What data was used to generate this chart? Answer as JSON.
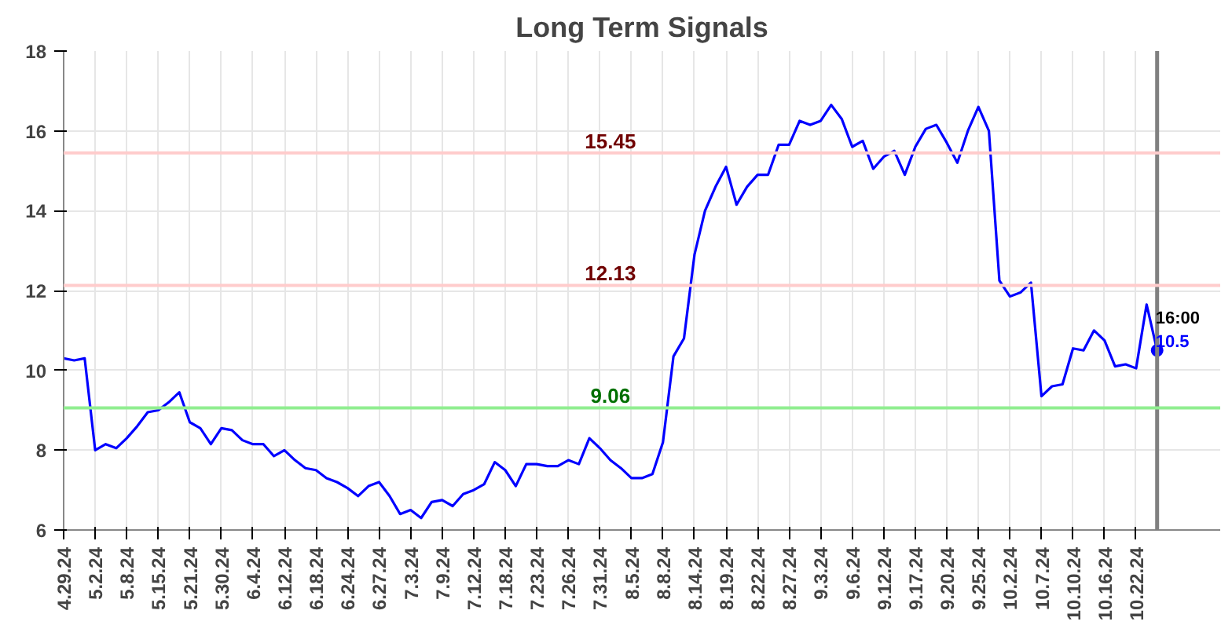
{
  "chart_data": {
    "type": "line",
    "title": "Long Term Signals",
    "categories": [
      "4.29.24",
      null,
      null,
      "5.2.24",
      null,
      null,
      "5.8.24",
      null,
      null,
      "5.15.24",
      null,
      null,
      "5.21.24",
      null,
      null,
      "5.30.24",
      null,
      null,
      "6.4.24",
      null,
      null,
      "6.12.24",
      null,
      null,
      "6.18.24",
      null,
      null,
      "6.24.24",
      null,
      null,
      "6.27.24",
      null,
      null,
      "7.3.24",
      null,
      null,
      "7.9.24",
      null,
      null,
      "7.12.24",
      null,
      null,
      "7.18.24",
      null,
      null,
      "7.23.24",
      null,
      null,
      "7.26.24",
      null,
      null,
      "7.31.24",
      null,
      null,
      "8.5.24",
      null,
      null,
      "8.8.24",
      null,
      null,
      "8.14.24",
      null,
      null,
      "8.19.24",
      null,
      null,
      "8.22.24",
      null,
      null,
      "8.27.24",
      null,
      null,
      "9.3.24",
      null,
      null,
      "9.6.24",
      null,
      null,
      "9.12.24",
      null,
      null,
      "9.17.24",
      null,
      null,
      "9.20.24",
      null,
      null,
      "9.25.24",
      null,
      null,
      "10.2.24",
      null,
      null,
      "10.7.24",
      null,
      null,
      "10.10.24",
      null,
      null,
      "10.16.24",
      null,
      null,
      "10.22.24",
      null,
      null
    ],
    "series": [
      {
        "color": "#0000ff",
        "values": [
          10.3,
          10.25,
          10.3,
          8.0,
          8.15,
          8.05,
          8.3,
          8.6,
          8.95,
          9.0,
          9.2,
          9.45,
          8.7,
          8.55,
          8.15,
          8.55,
          8.5,
          8.25,
          8.15,
          8.15,
          7.85,
          8.0,
          7.75,
          7.55,
          7.5,
          7.3,
          7.2,
          7.05,
          6.85,
          7.1,
          7.2,
          6.85,
          6.4,
          6.5,
          6.3,
          6.7,
          6.75,
          6.6,
          6.9,
          7.0,
          7.15,
          7.7,
          7.5,
          7.1,
          7.65,
          7.65,
          7.6,
          7.6,
          7.75,
          7.65,
          8.3,
          8.05,
          7.75,
          7.55,
          7.3,
          7.3,
          7.4,
          8.2,
          10.35,
          10.8,
          12.9,
          14.0,
          14.6,
          15.1,
          14.15,
          14.6,
          14.9,
          14.9,
          15.65,
          15.65,
          16.25,
          16.15,
          16.25,
          16.65,
          16.3,
          15.6,
          15.75,
          15.05,
          15.35,
          15.5,
          14.9,
          15.6,
          16.05,
          16.15,
          15.7,
          15.2,
          16.0,
          16.6,
          16.0,
          12.25,
          11.85,
          11.95,
          12.2,
          9.35,
          9.6,
          9.65,
          10.55,
          10.5,
          11.0,
          10.75,
          10.1,
          10.15,
          10.05,
          11.65,
          10.5
        ]
      },
      {
        "type": "scatter",
        "marker": "circle",
        "color": "#0000ff",
        "values": [
          null,
          null,
          null,
          null,
          null,
          null,
          null,
          null,
          null,
          null,
          null,
          null,
          null,
          null,
          null,
          null,
          null,
          null,
          null,
          null,
          null,
          null,
          null,
          null,
          null,
          null,
          null,
          null,
          null,
          null,
          null,
          null,
          null,
          null,
          null,
          null,
          null,
          null,
          null,
          null,
          null,
          null,
          null,
          null,
          null,
          null,
          null,
          null,
          null,
          null,
          null,
          null,
          null,
          null,
          null,
          null,
          null,
          null,
          null,
          null,
          null,
          null,
          null,
          null,
          null,
          null,
          null,
          null,
          null,
          null,
          null,
          null,
          null,
          null,
          null,
          null,
          null,
          null,
          null,
          null,
          null,
          null,
          null,
          null,
          null,
          null,
          null,
          null,
          null,
          null,
          null,
          null,
          null,
          null,
          null,
          null,
          null,
          null,
          null,
          null,
          null,
          null,
          null,
          null,
          10.5
        ]
      }
    ],
    "ylim": [
      6,
      18
    ],
    "yticks": [
      6,
      8,
      10,
      12,
      14,
      16,
      18
    ],
    "grid": true,
    "marker": "none",
    "line_style": "solid",
    "ref_lines": [
      {
        "axis": "y",
        "value": 15.45,
        "label": "15.45",
        "color": "#ffcccc"
      },
      {
        "axis": "y",
        "value": 12.13,
        "label": "12.13",
        "color": "#ffcccc"
      },
      {
        "axis": "y",
        "value": 9.06,
        "label": "9.06",
        "color": "#90ee90"
      }
    ],
    "annotations": [
      "16:00",
      "10.5"
    ]
  }
}
